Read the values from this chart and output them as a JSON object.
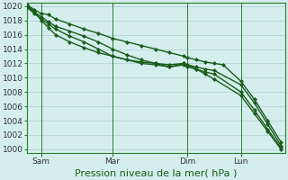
{
  "background_color": "#d4eeed",
  "plot_bg_color": "#d4eeed",
  "grid_color": "#aad0ce",
  "line_color": "#1a5c1a",
  "ylim": [
    999.5,
    1020.5
  ],
  "yticks": [
    1000,
    1002,
    1004,
    1006,
    1008,
    1010,
    1012,
    1014,
    1016,
    1018,
    1020
  ],
  "xlabel": "Pression niveau de la mer( hPa )",
  "xlabel_fontsize": 8,
  "tick_fontsize": 6.5,
  "xtick_labels": [
    "Sam",
    "Mar",
    "Dim",
    "Lun"
  ],
  "xtick_positions": [
    16,
    96,
    180,
    240
  ],
  "xlim": [
    0,
    290
  ],
  "series": [
    {
      "x": [
        0,
        8,
        16,
        24,
        32,
        48,
        64,
        80,
        96,
        112,
        128,
        144,
        160,
        176,
        180,
        190,
        200,
        210,
        220,
        240,
        255,
        270,
        285
      ],
      "y": [
        1020.2,
        1019.5,
        1019.0,
        1018.8,
        1018.2,
        1017.5,
        1016.8,
        1016.2,
        1015.5,
        1015.0,
        1014.5,
        1014.0,
        1013.5,
        1013.0,
        1012.8,
        1012.5,
        1012.2,
        1012.0,
        1011.8,
        1009.5,
        1007.0,
        1004.0,
        1001.0
      ],
      "marker": "D",
      "markersize": 2.0,
      "linewidth": 1.0
    },
    {
      "x": [
        0,
        8,
        16,
        24,
        32,
        48,
        64,
        80,
        96,
        112,
        128,
        144,
        160,
        176,
        180,
        190,
        200,
        210,
        240,
        255,
        270,
        285
      ],
      "y": [
        1020.0,
        1019.2,
        1018.5,
        1017.8,
        1017.2,
        1016.5,
        1015.8,
        1015.0,
        1014.0,
        1013.2,
        1012.5,
        1012.0,
        1011.8,
        1012.0,
        1011.8,
        1011.5,
        1011.2,
        1011.0,
        1009.0,
        1006.5,
        1003.5,
        1000.5
      ],
      "marker": "D",
      "markersize": 2.0,
      "linewidth": 1.0
    },
    {
      "x": [
        0,
        8,
        16,
        24,
        32,
        48,
        64,
        80,
        96,
        112,
        128,
        144,
        160,
        176,
        180,
        190,
        200,
        210,
        240,
        255,
        270,
        285
      ],
      "y": [
        1019.8,
        1019.0,
        1018.2,
        1017.5,
        1016.8,
        1015.8,
        1015.0,
        1014.0,
        1013.0,
        1012.5,
        1012.0,
        1011.8,
        1011.5,
        1011.8,
        1011.5,
        1011.2,
        1010.8,
        1010.5,
        1008.0,
        1005.5,
        1002.8,
        1000.2
      ],
      "marker": "D",
      "markersize": 2.0,
      "linewidth": 1.0
    },
    {
      "x": [
        0,
        8,
        16,
        24,
        32,
        48,
        64,
        80,
        96,
        112,
        128,
        144,
        160,
        176,
        180,
        190,
        200,
        210,
        240,
        255,
        270,
        285
      ],
      "y": [
        1020.1,
        1019.3,
        1018.0,
        1017.0,
        1016.0,
        1015.0,
        1014.2,
        1013.5,
        1013.0,
        1012.5,
        1012.2,
        1012.0,
        1011.5,
        1012.0,
        1011.8,
        1011.2,
        1010.5,
        1009.8,
        1007.5,
        1005.0,
        1002.5,
        1000.0
      ],
      "marker": "D",
      "markersize": 2.0,
      "linewidth": 1.0
    }
  ],
  "vline_positions": [
    16,
    96,
    180,
    240
  ],
  "vline_color": "#2d7d2d",
  "vline_lw": 0.7
}
